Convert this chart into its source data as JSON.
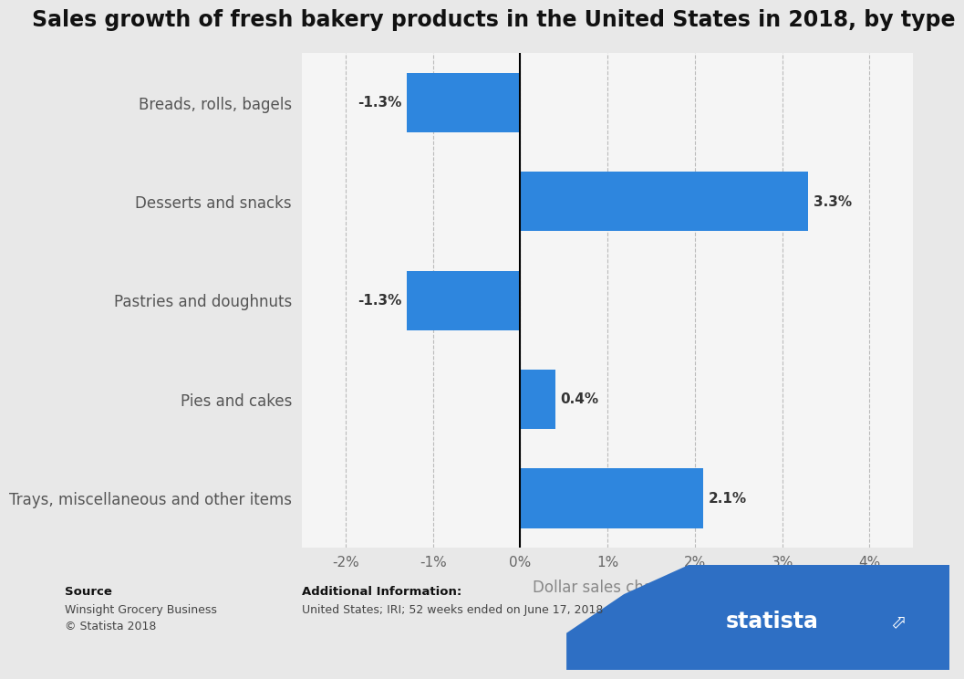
{
  "title": "Sales growth of fresh bakery products in the United States in 2018, by type",
  "categories": [
    "Trays, miscellaneous and other items",
    "Pies and cakes",
    "Pastries and doughnuts",
    "Desserts and snacks",
    "Breads, rolls, bagels"
  ],
  "values": [
    2.1,
    0.4,
    -1.3,
    3.3,
    -1.3
  ],
  "bar_color": "#2e86de",
  "xlabel": "Dollar sales change",
  "xlim": [
    -2.5,
    4.5
  ],
  "xticks": [
    -2,
    -1,
    0,
    1,
    2,
    3,
    4
  ],
  "xtick_labels": [
    "-2%",
    "-1%",
    "0%",
    "1%",
    "2%",
    "3%",
    "4%"
  ],
  "background_color": "#e8e8e8",
  "plot_bg_color": "#ebebeb",
  "row_white_color": "#f5f5f5",
  "title_fontsize": 17,
  "label_fontsize": 12,
  "tick_fontsize": 11,
  "source_text": "Source",
  "source_line1": "Winsight Grocery Business",
  "source_line2": "© Statista 2018",
  "additional_info_title": "Additional Information:",
  "additional_info_text": "United States; IRI; 52 weeks ended on June 17, 2018",
  "footer_bg": "#e0e0e0",
  "statista_dark": "#1b2e5e",
  "statista_blue": "#2e6fc4"
}
